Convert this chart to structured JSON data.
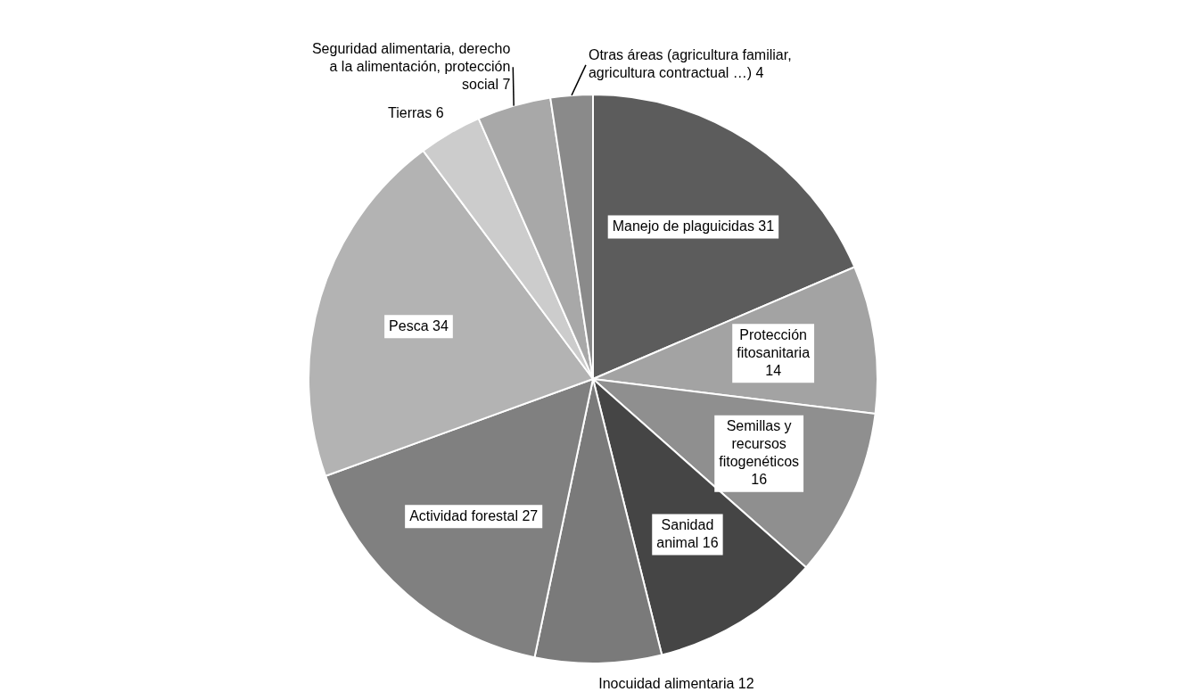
{
  "chart_data": {
    "type": "pie",
    "categories": [
      "Manejo de plaguicidas",
      "Protección fitosanitaria",
      "Semillas y recursos fitogenéticos",
      "Sanidad animal",
      "Inocuidad alimentaria",
      "Actividad forestal",
      "Pesca",
      "Tierras",
      "Seguridad alimentaria, derecho a la alimentación, protección social",
      "Otras áreas (agricultura familiar, agricultura contractual …)"
    ],
    "values": [
      31,
      14,
      16,
      16,
      12,
      27,
      34,
      6,
      7,
      4
    ],
    "colors": [
      "#5c5c5c",
      "#a3a3a3",
      "#8f8f8f",
      "#454545",
      "#7a7a7a",
      "#808080",
      "#b3b3b3",
      "#cccccc",
      "#a8a8a8",
      "#8a8a8a"
    ],
    "data_labels": true,
    "legend": false
  }
}
